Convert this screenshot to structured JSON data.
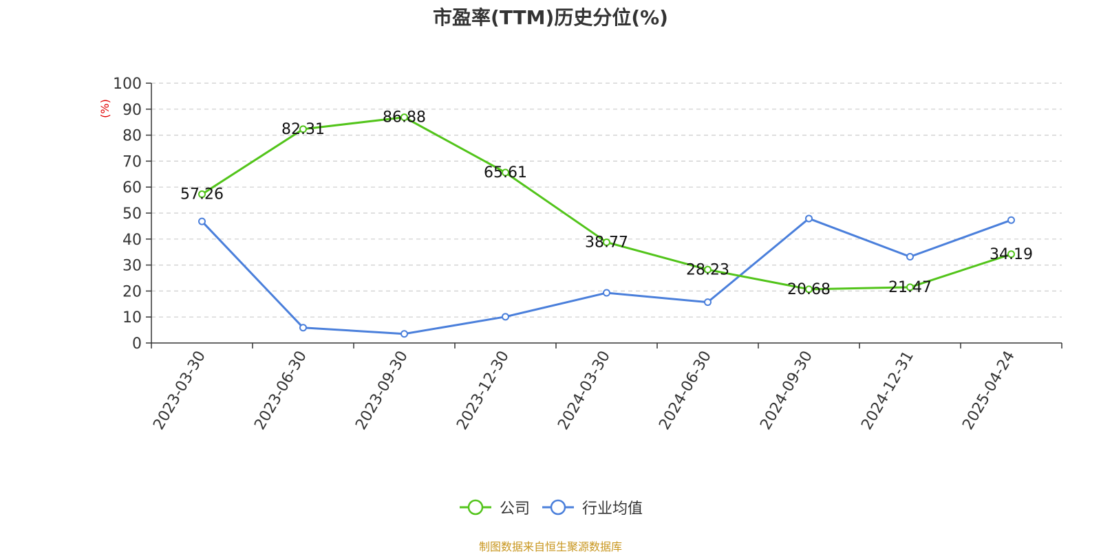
{
  "chart_data": {
    "type": "line",
    "title": "市盈率(TTM)历史分位(%)",
    "ylabel": "(%)",
    "categories": [
      "2023-03-30",
      "2023-06-30",
      "2023-09-30",
      "2023-12-30",
      "2024-03-30",
      "2024-06-30",
      "2024-09-30",
      "2024-12-31",
      "2025-04-24"
    ],
    "y_ticks": [
      "0",
      "10",
      "20",
      "30",
      "40",
      "50",
      "60",
      "70",
      "80",
      "90",
      "100"
    ],
    "ylim": [
      0,
      100
    ],
    "grid": true,
    "legend_position": "bottom-center",
    "series": [
      {
        "name": "公司",
        "color": "#52c41a",
        "values": [
          57.26,
          82.31,
          86.88,
          65.61,
          38.77,
          28.23,
          20.68,
          21.47,
          34.19
        ],
        "labels": [
          "57.26",
          "82.31",
          "86.88",
          "65.61",
          "38.77",
          "28.23",
          "20.68",
          "21.47",
          "34.19"
        ]
      },
      {
        "name": "行业均值",
        "color": "#4a7fdb",
        "values": [
          46.8,
          5.9,
          3.5,
          10.1,
          19.3,
          15.7,
          47.9,
          33.2,
          47.3
        ]
      }
    ]
  },
  "source_text": "制图数据来自恒生聚源数据库"
}
